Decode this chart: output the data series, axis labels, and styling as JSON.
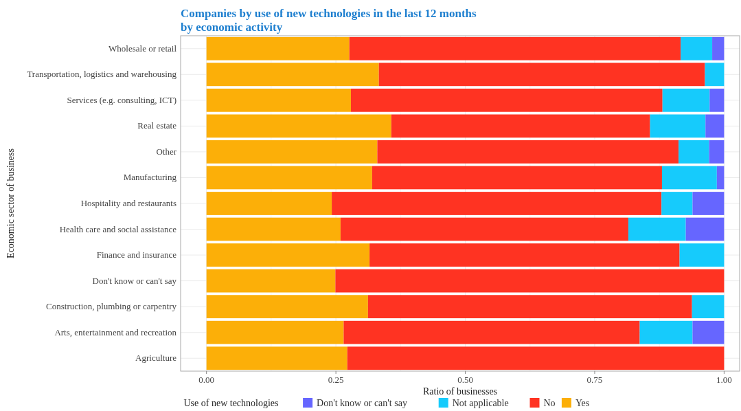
{
  "chart_data": {
    "type": "bar",
    "orientation": "horizontal",
    "stacked": true,
    "title": "Companies by use of new technologies in the last 12 months\nby economic activity",
    "xlabel": "Ratio of businesses",
    "ylabel": "Economic sector of business",
    "legend_title": "Use of new technologies",
    "legend": "bottom",
    "grid": true,
    "categories": [
      "Wholesale or retail",
      "Transportation, logistics and warehousing",
      "Services (e.g. consulting, ICT)",
      "Real estate",
      "Other",
      "Manufacturing",
      "Hospitality and restaurants",
      "Health care and social assistance",
      "Finance and insurance",
      "Don't know or can't say",
      "Construction, plumbing or carpentry",
      "Arts, entertainment and recreation",
      "Agriculture"
    ],
    "xlim": [
      -0.05,
      1.03
    ],
    "xticks": [
      {
        "value": 0,
        "label": "0.00"
      },
      {
        "value": 0.25,
        "label": "0.25"
      },
      {
        "value": 0.5,
        "label": "0.50"
      },
      {
        "value": 0.75,
        "label": "0.75"
      },
      {
        "value": 1,
        "label": "1.00"
      }
    ],
    "series": [
      {
        "name": "Yes",
        "color": "#fcaf08",
        "values": [
          0.276,
          0.333,
          0.279,
          0.357,
          0.33,
          0.32,
          0.242,
          0.259,
          0.315,
          0.249,
          0.312,
          0.265,
          0.272
        ]
      },
      {
        "name": "No",
        "color": "#ff3322",
        "values": [
          0.64,
          0.63,
          0.602,
          0.5,
          0.582,
          0.56,
          0.637,
          0.556,
          0.599,
          0.751,
          0.626,
          0.572,
          0.728
        ]
      },
      {
        "name": "Not applicable",
        "color": "#16cbfc",
        "values": [
          0.061,
          0.037,
          0.091,
          0.107,
          0.059,
          0.106,
          0.06,
          0.111,
          0.086,
          0,
          0.062,
          0.102,
          0
        ]
      },
      {
        "name": "Don't know or can't say",
        "color": "#6666ff",
        "values": [
          0.023,
          0,
          0.028,
          0.036,
          0.029,
          0.014,
          0.061,
          0.074,
          0,
          0,
          0,
          0.061,
          0
        ]
      }
    ]
  }
}
